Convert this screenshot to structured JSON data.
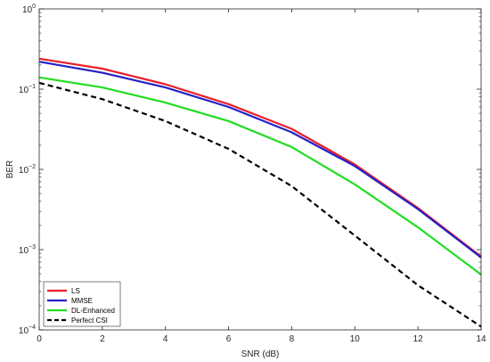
{
  "chart_data": {
    "type": "line",
    "xlabel": "SNR (dB)",
    "ylabel": "BER",
    "xlim": [
      0,
      14
    ],
    "ylim": [
      0.0001,
      1
    ],
    "yscale": "log",
    "grid": false,
    "legend_position": "bottom-left",
    "x": [
      0,
      2,
      4,
      6,
      8,
      10,
      12,
      14
    ],
    "xticks": [
      0,
      2,
      4,
      6,
      8,
      10,
      12,
      14
    ],
    "yticks": [
      {
        "value": 0.0001,
        "base": "10",
        "exp": "−4"
      },
      {
        "value": 0.001,
        "base": "10",
        "exp": "−3"
      },
      {
        "value": 0.01,
        "base": "10",
        "exp": "−2"
      },
      {
        "value": 0.1,
        "base": "10",
        "exp": "−1"
      },
      {
        "value": 1,
        "base": "10",
        "exp": "0"
      }
    ],
    "series": [
      {
        "name": "LS",
        "color": "#e8202a",
        "dash": "solid",
        "values": [
          0.24,
          0.18,
          0.115,
          0.065,
          0.032,
          0.0115,
          0.0033,
          0.00082
        ]
      },
      {
        "name": "MMSE",
        "color": "#2222c8",
        "dash": "solid",
        "values": [
          0.22,
          0.16,
          0.105,
          0.06,
          0.029,
          0.011,
          0.0032,
          0.0008
        ]
      },
      {
        "name": "DL-Enhanced",
        "color": "#22dd22",
        "dash": "solid",
        "values": [
          0.14,
          0.105,
          0.068,
          0.04,
          0.019,
          0.0065,
          0.0019,
          0.00049
        ]
      },
      {
        "name": "Perfect CSI",
        "color": "#000000",
        "dash": "dashed",
        "values": [
          0.12,
          0.075,
          0.04,
          0.018,
          0.0062,
          0.0015,
          0.00036,
          0.00011
        ]
      }
    ]
  }
}
